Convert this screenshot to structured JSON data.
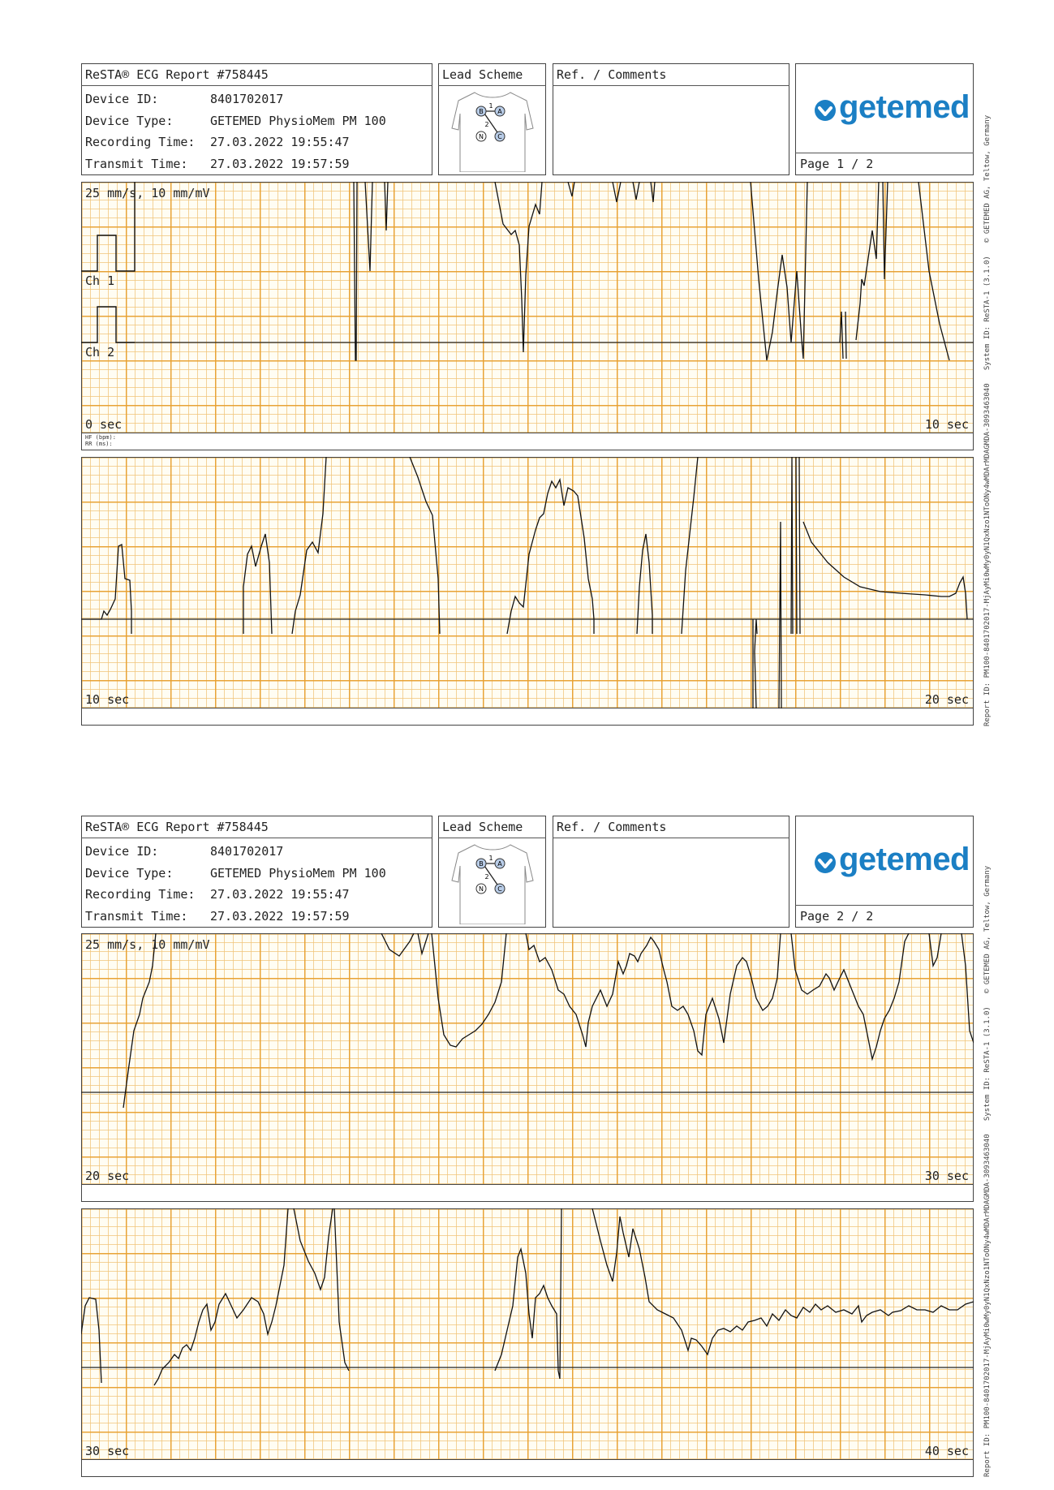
{
  "header": {
    "report_title": "ReSTA® ECG Report #758445",
    "device_id_label": "Device ID:",
    "device_id": "8401702017",
    "device_type_label": "Device Type:",
    "device_type": "GETEMED PhysioMem PM 100",
    "recording_time_label": "Recording Time:",
    "recording_time": "27.03.2022 19:55:47",
    "transmit_time_label": "Transmit Time:",
    "transmit_time": "27.03.2022 19:57:59",
    "lead_scheme_label": "Lead Scheme",
    "lead_points": [
      "B",
      "A",
      "N",
      "C"
    ],
    "lead_numbers": [
      "1",
      "2"
    ],
    "comments_label": "Ref. / Comments",
    "logo_text": "getemed"
  },
  "pages": [
    {
      "page_label": "Page 1 / 2"
    },
    {
      "page_label": "Page 2 / 2"
    }
  ],
  "scale_label": "25 mm/s, 10 mm/mV",
  "channel_labels": [
    "Ch 1",
    "Ch 2"
  ],
  "hr_labels": [
    "HF (bpm):",
    "RR (ms):"
  ],
  "strips": [
    {
      "start_label": "0 sec",
      "end_label": "10 sec"
    },
    {
      "start_label": "10 sec",
      "end_label": "20 sec"
    },
    {
      "start_label": "20 sec",
      "end_label": "30 sec"
    },
    {
      "start_label": "30 sec",
      "end_label": "40 sec"
    }
  ],
  "side_text": "Report ID: PM100-8401702017-MjAyMi0wMy0yN1QxNzo1NToONy4wMDArMDAGMDA-3093463040   System ID: ReSTA-1 (3.1.0)   © GETEMED AG, Teltow, Germany",
  "colors": {
    "grid_major": "#e8a030",
    "grid_minor": "#f0c478",
    "trace": "#111111",
    "logo": "#1b7fc4"
  }
}
